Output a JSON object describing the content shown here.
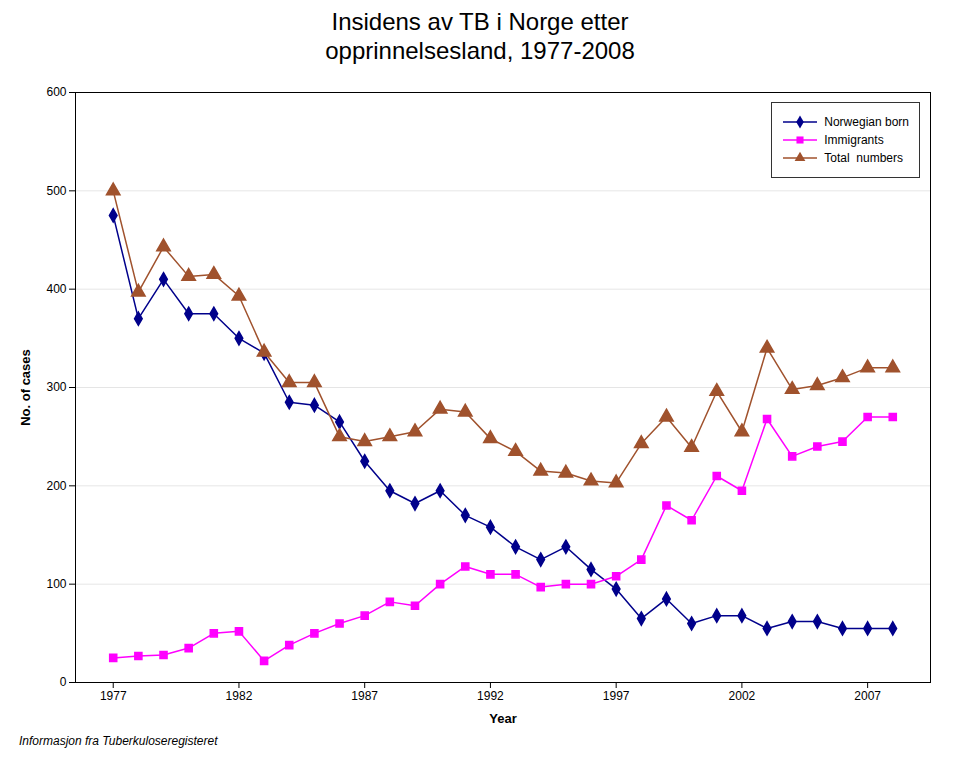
{
  "chart_data": {
    "type": "line",
    "title": "Insidens av TB i Norge etter\nopprinnelsesland, 1977-2008",
    "xlabel": "Year",
    "ylabel": "No. of cases",
    "footnote": "Informasjon fra Tuberkuloseregisteret",
    "x": [
      1977,
      1978,
      1979,
      1980,
      1981,
      1982,
      1983,
      1984,
      1985,
      1986,
      1987,
      1988,
      1989,
      1990,
      1991,
      1992,
      1993,
      1994,
      1995,
      1996,
      1997,
      1998,
      1999,
      2000,
      2001,
      2002,
      2003,
      2004,
      2005,
      2006,
      2007,
      2008
    ],
    "series": [
      {
        "name": "Norwegian born",
        "color": "#00008B",
        "marker": "diamond",
        "values": [
          475,
          370,
          410,
          375,
          375,
          350,
          335,
          285,
          282,
          265,
          225,
          195,
          182,
          195,
          170,
          158,
          138,
          125,
          138,
          115,
          95,
          65,
          85,
          60,
          68,
          68,
          55,
          62,
          62,
          55,
          55,
          55
        ]
      },
      {
        "name": "Immigrants",
        "color": "#FF00FF",
        "marker": "square",
        "values": [
          25,
          27,
          28,
          35,
          50,
          52,
          22,
          38,
          50,
          60,
          68,
          82,
          78,
          100,
          118,
          110,
          110,
          97,
          100,
          100,
          108,
          125,
          180,
          165,
          210,
          195,
          268,
          230,
          240,
          245,
          270,
          270
        ]
      },
      {
        "name": "Total  numbers",
        "color": "#A0522D",
        "marker": "triangle",
        "values": [
          500,
          397,
          443,
          413,
          415,
          393,
          336,
          305,
          305,
          250,
          245,
          250,
          255,
          278,
          275,
          248,
          235,
          215,
          213,
          205,
          203,
          243,
          270,
          239,
          296,
          255,
          340,
          298,
          302,
          310,
          320,
          320
        ]
      }
    ],
    "xlim": [
      1975.5,
      2009.5
    ],
    "xticks": [
      1977,
      1982,
      1987,
      1992,
      1997,
      2002,
      2007
    ],
    "ylim": [
      0,
      600
    ],
    "yticks": [
      0,
      100,
      200,
      300,
      400,
      500,
      600
    ],
    "grid": true,
    "legend": "upper right"
  }
}
